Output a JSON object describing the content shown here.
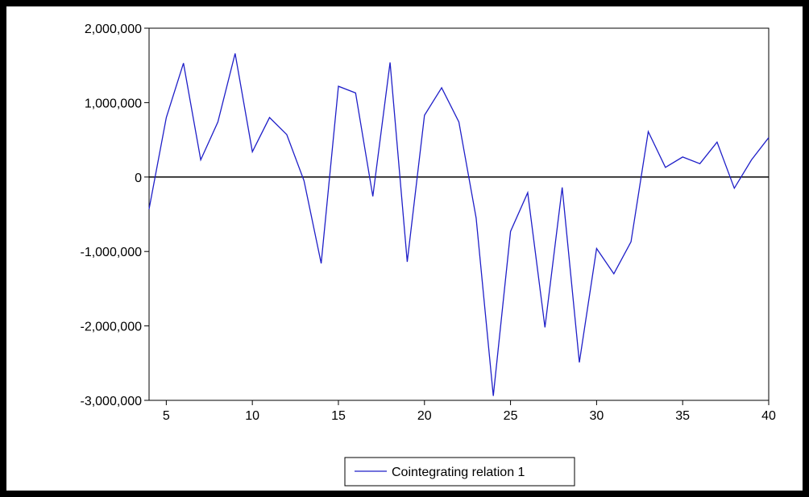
{
  "colors": {
    "background": "#ffffff",
    "frame": "#000000",
    "series": "#1f1fc8",
    "zero_line": "#000000",
    "axis": "#000000"
  },
  "chart_data": {
    "type": "line",
    "xlim": [
      4,
      40
    ],
    "ylim": [
      -3000000,
      2000000
    ],
    "x_ticks": [
      5,
      10,
      15,
      20,
      25,
      30,
      35,
      40
    ],
    "x_tick_labels": [
      "5",
      "10",
      "15",
      "20",
      "25",
      "30",
      "35",
      "40"
    ],
    "y_ticks": [
      2000000,
      1000000,
      0,
      -1000000,
      -2000000,
      -3000000
    ],
    "y_tick_labels": [
      "2,000,000",
      "1,000,000",
      "0",
      "-1,000,000",
      "-2,000,000",
      "-3,000,000"
    ],
    "reference_line_y": 0,
    "grid": false,
    "legend_position": "bottom-center",
    "x": [
      4,
      5,
      6,
      7,
      8,
      9,
      10,
      11,
      12,
      13,
      14,
      15,
      16,
      17,
      18,
      19,
      20,
      21,
      22,
      23,
      24,
      25,
      26,
      27,
      28,
      29,
      30,
      31,
      32,
      33,
      34,
      35,
      36,
      37,
      38,
      39,
      40
    ],
    "series": [
      {
        "name": "Cointegrating relation 1",
        "values": [
          -430000,
          800000,
          1530000,
          230000,
          740000,
          1660000,
          340000,
          800000,
          570000,
          -50000,
          -1160000,
          1220000,
          1130000,
          -260000,
          1540000,
          -1140000,
          830000,
          1200000,
          740000,
          -550000,
          -2940000,
          -730000,
          -210000,
          -2020000,
          -140000,
          -2490000,
          -960000,
          -1300000,
          -870000,
          610000,
          130000,
          270000,
          180000,
          470000,
          -150000,
          230000,
          530000
        ]
      }
    ],
    "title": "",
    "xlabel": "",
    "ylabel": ""
  }
}
